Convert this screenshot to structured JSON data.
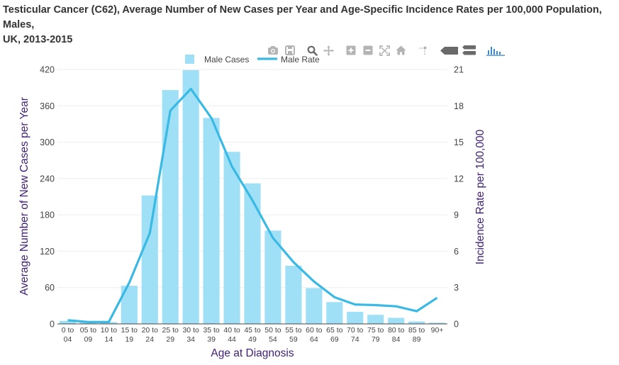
{
  "page": {
    "title_line1": "Testicular Cancer (C62), Average Number of New Cases per Year and Age-Specific Incidence Rates per 100,000 Population, Males,",
    "title_line2": "UK, 2013-2015"
  },
  "colors": {
    "bar": "#9fe0f6",
    "line": "#39b9e3",
    "axis_title": "#3e1f74",
    "tick": "#444444",
    "grid": "#eeeeee",
    "modebar_icon": "#b4b4b4",
    "modebar_active": "#6a6a6a",
    "modebar_accent": "#3a89c9"
  },
  "modebar": {
    "icons": [
      "camera-icon",
      "save-icon",
      "zoom-icon",
      "pan-icon",
      "zoom-in-icon",
      "zoom-out-icon",
      "autoscale-icon",
      "home-icon",
      "spike-lines-icon",
      "hover-closest-icon",
      "hover-compare-icon",
      "plotly-logo-icon"
    ]
  },
  "chart_data": {
    "type": "bar",
    "categories": [
      "0 to 04",
      "05 to 09",
      "10 to 14",
      "15 to 19",
      "20 to 24",
      "25 to 29",
      "30 to 34",
      "35 to 39",
      "40 to 44",
      "45 to 49",
      "50 to 54",
      "55 to 59",
      "60 to 64",
      "65 to 69",
      "70 to 74",
      "75 to 79",
      "80 to 84",
      "85 to 89",
      "90+"
    ],
    "tick_labels": [
      [
        "0 to",
        "04"
      ],
      [
        "05 to",
        "09"
      ],
      [
        "10 to",
        "14"
      ],
      [
        "15 to",
        "19"
      ],
      [
        "20 to",
        "24"
      ],
      [
        "25 to",
        "29"
      ],
      [
        "30 to",
        "34"
      ],
      [
        "35 to",
        "39"
      ],
      [
        "40 to",
        "44"
      ],
      [
        "45 to",
        "49"
      ],
      [
        "50 to",
        "54"
      ],
      [
        "55 to",
        "59"
      ],
      [
        "60 to",
        "64"
      ],
      [
        "65 to",
        "69"
      ],
      [
        "70 to",
        "74"
      ],
      [
        "75 to",
        "79"
      ],
      [
        "80 to",
        "84"
      ],
      [
        "85 to",
        "89"
      ],
      [
        "90+",
        ""
      ]
    ],
    "series": [
      {
        "name": "Male Cases",
        "type": "bar",
        "axis": "left",
        "values": [
          5,
          2,
          3,
          63,
          212,
          386,
          419,
          340,
          284,
          232,
          154,
          96,
          59,
          36,
          20,
          15,
          10,
          4,
          2
        ]
      },
      {
        "name": "Male Rate",
        "type": "line",
        "axis": "right",
        "values": [
          0.3,
          0.15,
          0.15,
          3.4,
          7.5,
          17.6,
          19.4,
          17.0,
          13.0,
          10.2,
          7.1,
          5.1,
          3.5,
          2.2,
          1.6,
          1.55,
          1.45,
          1.05,
          2.15
        ]
      }
    ],
    "xlabel": "Age at Diagnosis",
    "ylabel": "Average Number of New Cases per Year",
    "y2label": "Incidence Rate per 100,000",
    "ylim": [
      0,
      420
    ],
    "y2lim": [
      0,
      21
    ],
    "yticks": [
      0,
      60,
      120,
      180,
      240,
      300,
      360,
      420
    ],
    "y2ticks": [
      0,
      3,
      6,
      9,
      12,
      15,
      18,
      21
    ],
    "grid": true,
    "legend_position": "top-center"
  }
}
